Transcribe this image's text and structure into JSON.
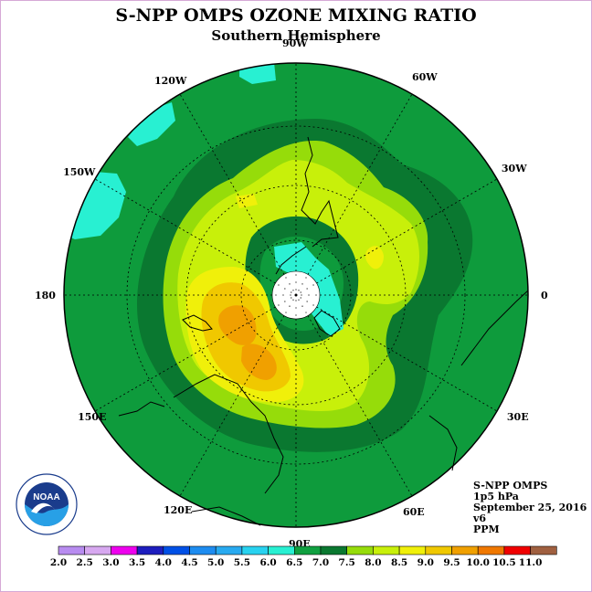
{
  "title": "S-NPP OMPS OZONE MIXING RATIO",
  "subtitle": "Southern Hemisphere",
  "longitude_labels": [
    "90W",
    "60W",
    "30W",
    "0",
    "30E",
    "60E",
    "90E",
    "120E",
    "150E",
    "180",
    "150W",
    "120W"
  ],
  "info": {
    "instrument": "S-NPP OMPS",
    "level": "1p5 hPa",
    "date": "September 25, 2016",
    "version": "v6",
    "units": "PPM"
  },
  "logo": {
    "text": "NOAA"
  },
  "colorbar": {
    "labels": [
      "2.0",
      "2.5",
      "3.0",
      "3.5",
      "4.0",
      "4.5",
      "5.0",
      "5.5",
      "6.0",
      "6.5",
      "7.0",
      "7.5",
      "8.0",
      "8.5",
      "9.0",
      "9.5",
      "10.0",
      "10.5",
      "11.0"
    ],
    "colors": [
      "#b88cf0",
      "#d7a8f0",
      "#ee00ee",
      "#1e1ebe",
      "#0050e6",
      "#1e8cf0",
      "#28aaf0",
      "#28d2f0",
      "#28f0d2",
      "#10a040",
      "#0a7830",
      "#96dc0a",
      "#c8f00a",
      "#f0f00a",
      "#f0c800",
      "#f0a000",
      "#f07800",
      "#f00000",
      "#a06040"
    ]
  },
  "colors": {
    "ocean_base": "#0e9b3c",
    "dark_green": "#0a7830",
    "yellow_green": "#96dc0a",
    "lime": "#c8f00a",
    "yellow": "#f0f00a",
    "gold": "#f0c800",
    "orange": "#f0a000",
    "cyan": "#28f0d2"
  }
}
